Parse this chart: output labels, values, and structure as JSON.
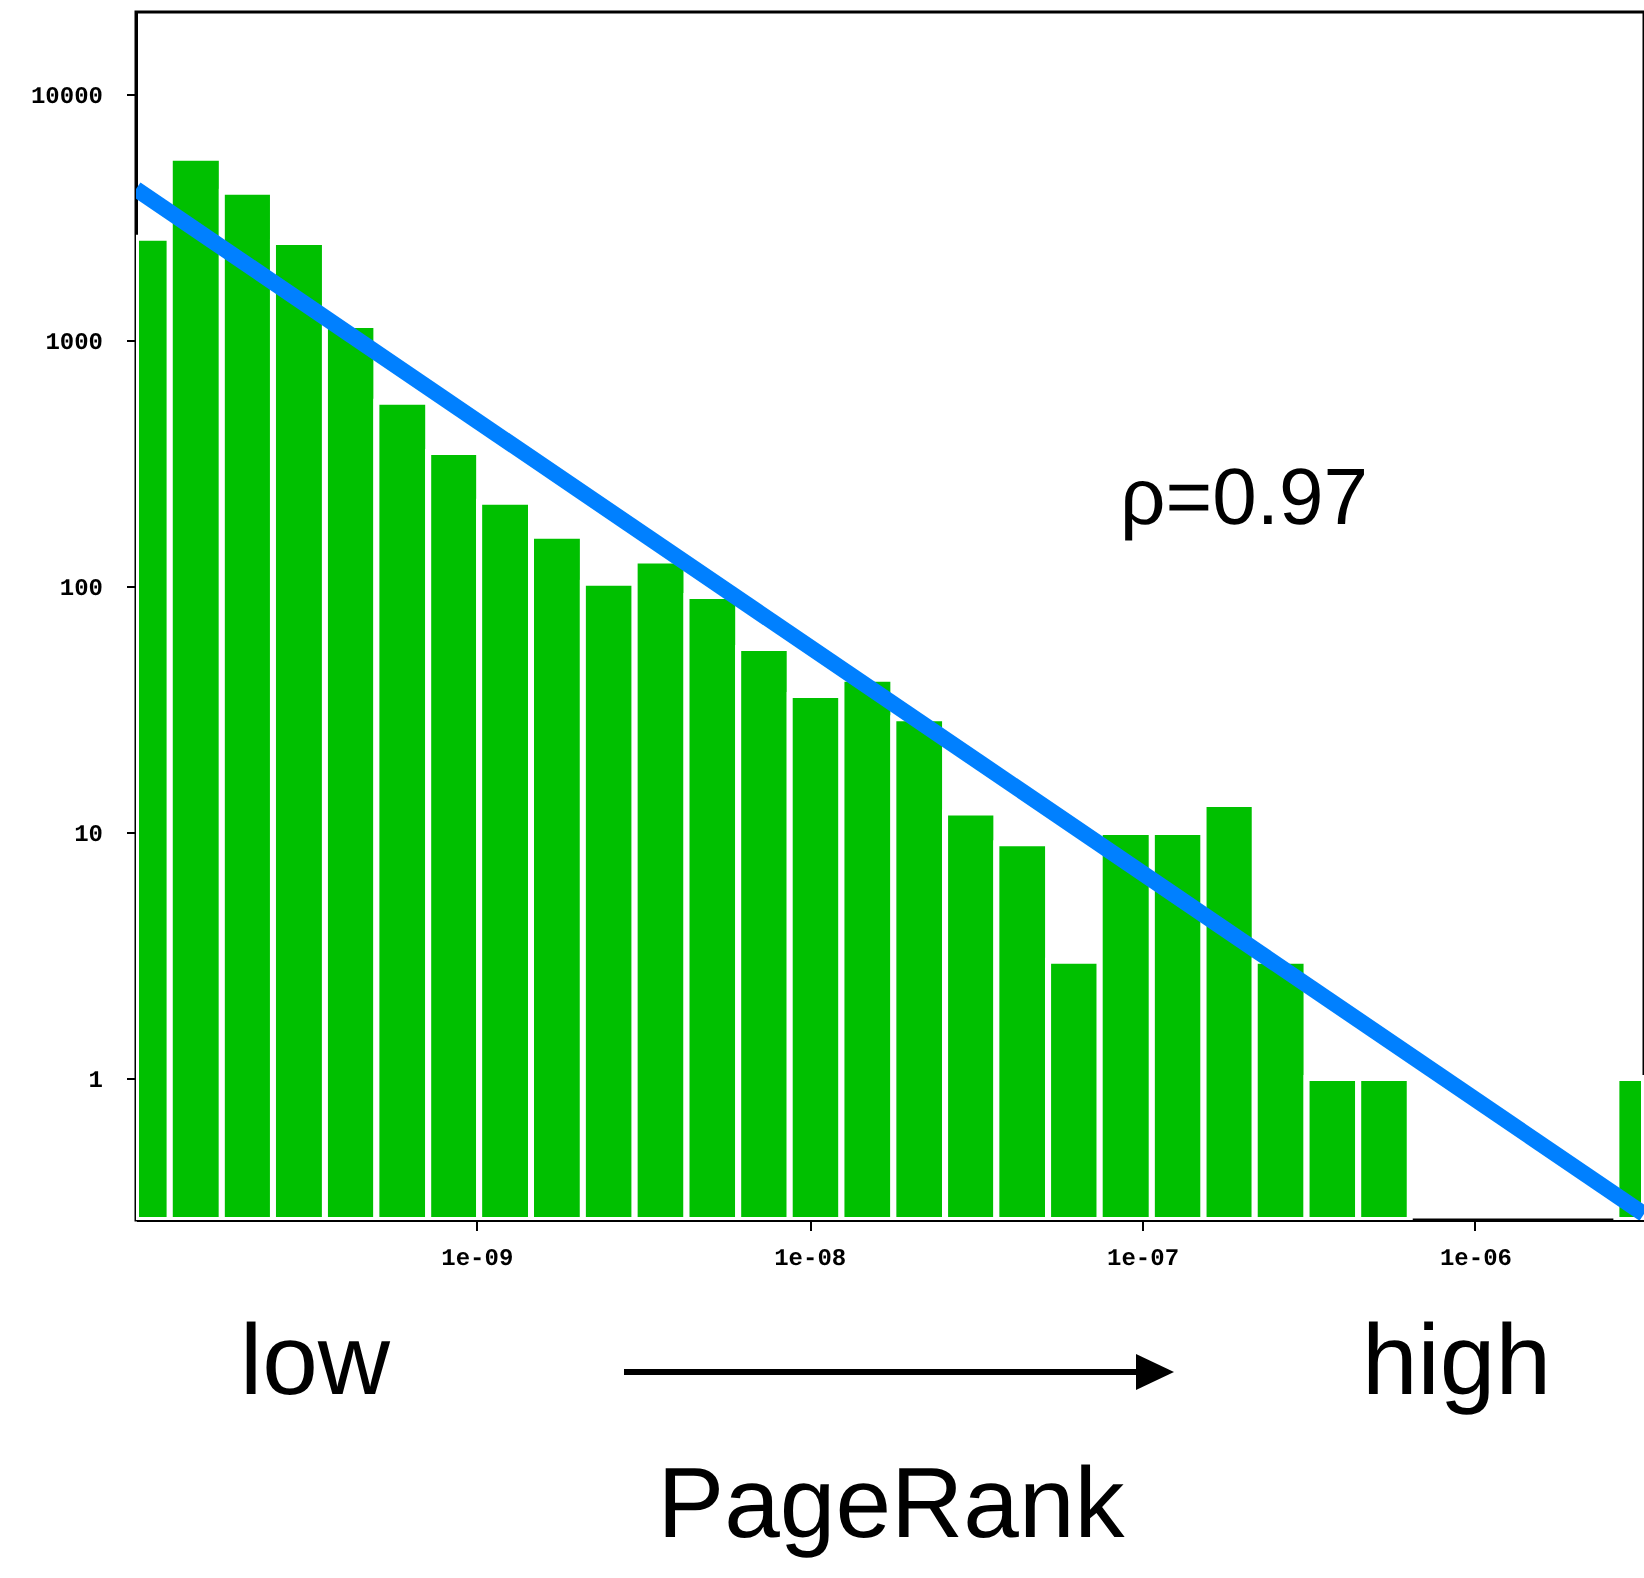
{
  "chart_data": {
    "type": "histogram",
    "xlabel": "PageRank",
    "log": "xy",
    "grid": false,
    "color": "#00c000",
    "annotations": [
      "ρ=0.97",
      "low",
      "high"
    ],
    "bins": [
      9.5e-11,
      1.2e-10,
      1.72e-10,
      2.45e-10,
      3.51e-10,
      5.01e-10,
      7.17e-10,
      1.02e-09,
      1.46e-09,
      2.09e-09,
      2.99e-09,
      4.28e-09,
      6.12e-09,
      8.74e-09,
      1.25e-08,
      1.79e-08,
      2.56e-08,
      3.65e-08,
      5.22e-08,
      7.46e-08,
      1.07e-07,
      1.53e-07,
      2.18e-07,
      3.12e-07,
      4.46e-07,
      6.37e-07,
      2.66e-06,
      3.22e-06
    ],
    "values": [
      2600,
      5500,
      4000,
      2500,
      1150,
      560,
      350,
      220,
      160,
      103,
      127,
      91,
      56,
      36,
      42,
      29,
      12,
      9,
      3,
      10,
      10,
      13,
      3,
      1,
      1,
      null,
      1
    ],
    "series": [
      {
        "type": "line",
        "color": "#0080ff",
        "x": [
          9.5e-11,
          3.22e-06
        ],
        "values": [
          4100,
          0.28
        ]
      }
    ],
    "xlim": [
      9.5e-11,
      3.22e-06
    ],
    "ylim": [
      0.265,
      21500
    ],
    "xticks": [
      {
        "value": 1e-09,
        "label": "1e-09"
      },
      {
        "value": 1e-08,
        "label": "1e-08"
      },
      {
        "value": 1e-07,
        "label": "1e-07"
      },
      {
        "value": 1e-06,
        "label": "1e-06"
      }
    ],
    "yticks": [
      1,
      10,
      100,
      1000,
      10000
    ]
  }
}
